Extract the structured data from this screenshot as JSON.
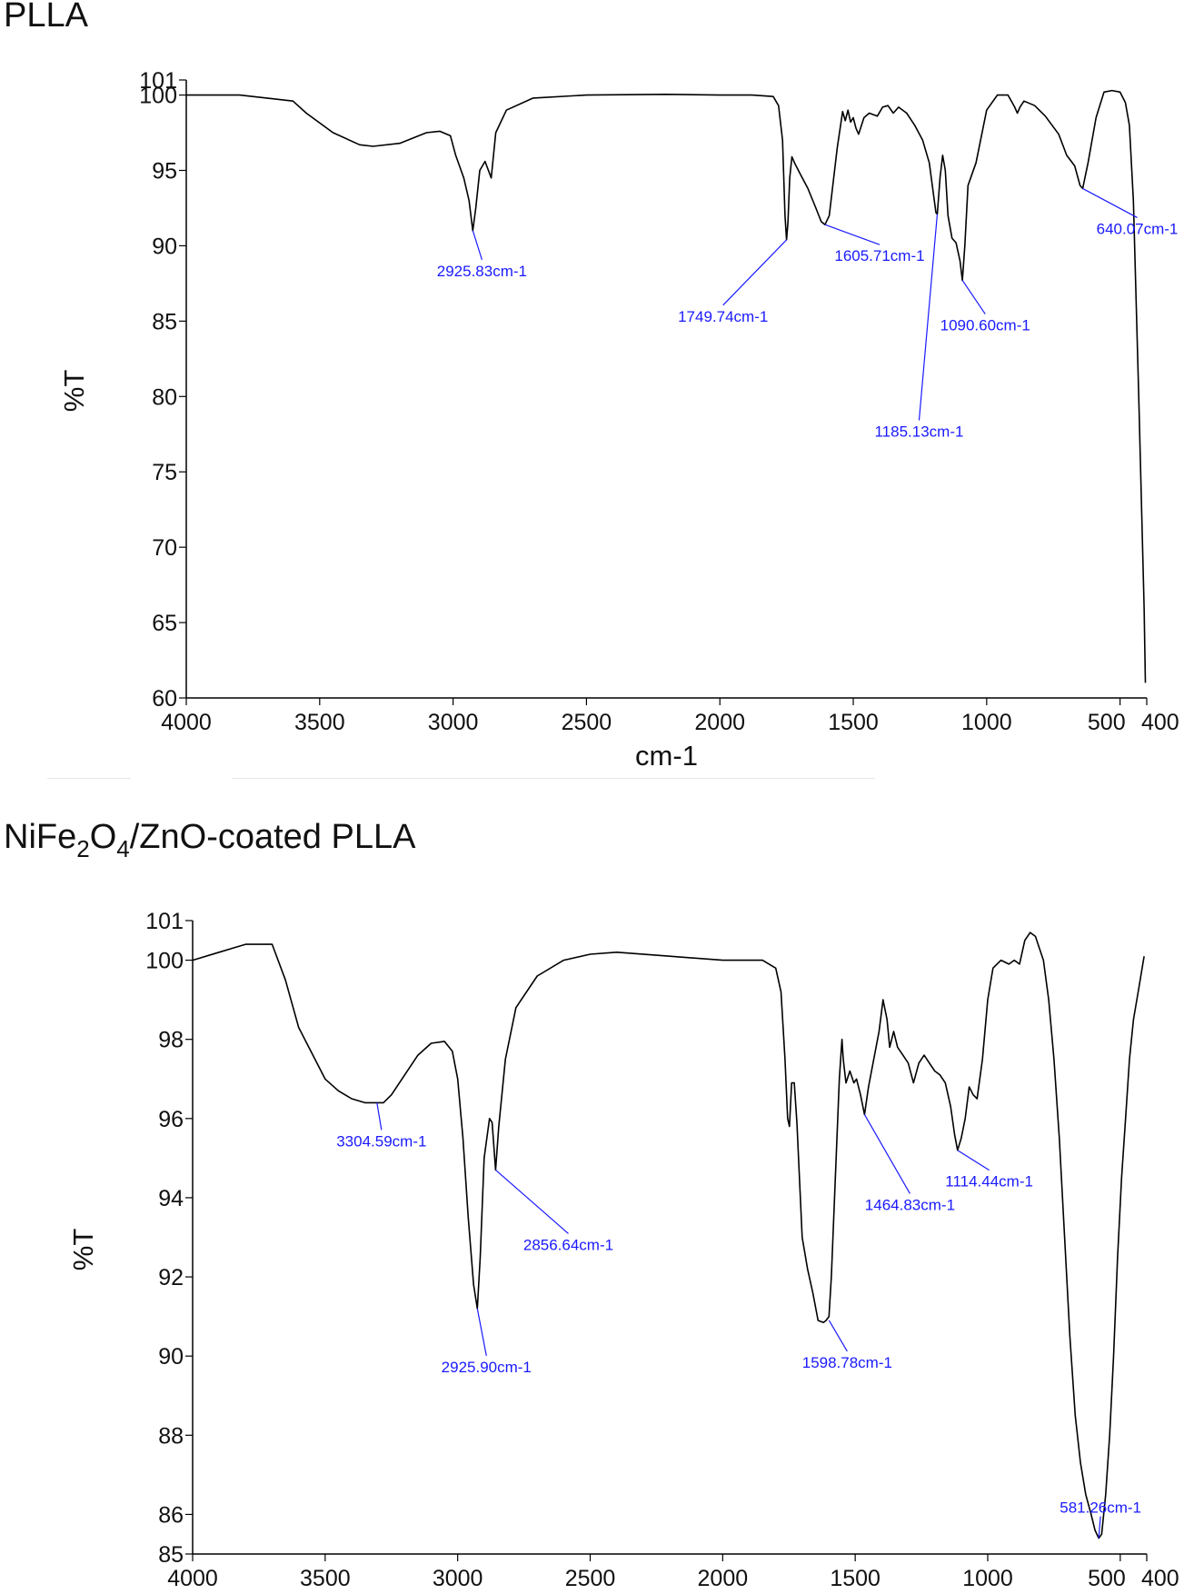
{
  "chart_data": [
    {
      "type": "line",
      "title": "PLLA",
      "xlabel": "cm-1",
      "ylabel": "%T",
      "xlim": [
        4000,
        400
      ],
      "ylim": [
        60,
        101
      ],
      "x_ticks": [
        4000,
        3500,
        3000,
        2500,
        2000,
        1500,
        1000,
        500,
        400
      ],
      "x_tick_labels": [
        "4000",
        "3500",
        "3000",
        "2500",
        "2000",
        "1500",
        "1000",
        "500",
        "400"
      ],
      "y_ticks": [
        60,
        65,
        70,
        75,
        80,
        85,
        90,
        95,
        100,
        101
      ],
      "y_tick_labels": [
        "60",
        "65",
        "70",
        "75",
        "80",
        "85",
        "90",
        "95",
        "100",
        "101"
      ],
      "grid": false,
      "line_color": "#000000",
      "annotation_color": "#1a1aff",
      "series": [
        {
          "x": [
            4000,
            3800,
            3600,
            3550,
            3450,
            3350,
            3300,
            3200,
            3100,
            3050,
            3010,
            2990,
            2960,
            2940,
            2926,
            2915,
            2900,
            2880,
            2857,
            2840,
            2800,
            2700,
            2500,
            2200,
            2000,
            1880,
            1800,
            1780,
            1765,
            1756,
            1750,
            1745,
            1738,
            1730,
            1720,
            1700,
            1670,
            1640,
            1620,
            1606,
            1590,
            1560,
            1540,
            1530,
            1520,
            1510,
            1500,
            1490,
            1480,
            1460,
            1440,
            1410,
            1390,
            1370,
            1350,
            1330,
            1300,
            1270,
            1240,
            1215,
            1200,
            1190,
            1185,
            1175,
            1165,
            1155,
            1145,
            1130,
            1115,
            1100,
            1091,
            1082,
            1070,
            1060,
            1040,
            1000,
            960,
            920,
            895,
            885,
            875,
            860,
            820,
            780,
            730,
            700,
            670,
            650,
            640,
            620,
            590,
            560,
            530,
            500,
            480,
            465,
            450,
            430,
            410,
            405
          ],
          "y": [
            100.0,
            100.0,
            99.6,
            98.8,
            97.5,
            96.7,
            96.6,
            96.8,
            97.5,
            97.6,
            97.3,
            96.0,
            94.5,
            93.0,
            91.0,
            92.5,
            95.0,
            95.6,
            94.5,
            97.5,
            99.0,
            99.8,
            100.0,
            100.05,
            100.0,
            100.0,
            99.9,
            99.3,
            97.0,
            92.0,
            90.4,
            91.5,
            94.5,
            95.9,
            95.5,
            94.8,
            93.8,
            92.5,
            91.6,
            91.4,
            92.0,
            96.5,
            98.9,
            98.3,
            99.0,
            98.2,
            98.5,
            97.8,
            97.4,
            98.5,
            98.8,
            98.6,
            99.2,
            99.3,
            98.8,
            99.2,
            98.8,
            98.0,
            97.0,
            95.5,
            93.5,
            92.2,
            92.1,
            94.5,
            96.0,
            95.0,
            92.0,
            90.5,
            90.2,
            89.0,
            87.7,
            90.0,
            94.0,
            94.5,
            95.5,
            99.0,
            100.0,
            100.0,
            99.2,
            98.8,
            99.2,
            99.6,
            99.3,
            98.6,
            97.4,
            96.0,
            95.3,
            94.0,
            93.8,
            95.5,
            98.5,
            100.2,
            100.3,
            100.2,
            99.5,
            98.0,
            93.0,
            80.0,
            66.0,
            61.0
          ]
        }
      ],
      "annotations": [
        {
          "label": "2925.83cm-1",
          "x": 2925.83,
          "y": 91.0
        },
        {
          "label": "1749.74cm-1",
          "x": 1749.74,
          "y": 90.4
        },
        {
          "label": "1605.71cm-1",
          "x": 1605.71,
          "y": 91.4
        },
        {
          "label": "1185.13cm-1",
          "x": 1185.13,
          "y": 92.1
        },
        {
          "label": "1090.60cm-1",
          "x": 1090.6,
          "y": 87.7
        },
        {
          "label": "640.07cm-1",
          "x": 640.07,
          "y": 93.8
        }
      ]
    },
    {
      "type": "line",
      "title": "NiFe2O4/ZnO-coated PLLA",
      "xlabel": "",
      "ylabel": "%T",
      "xlim": [
        4000,
        400
      ],
      "ylim": [
        85,
        101
      ],
      "x_ticks": [
        4000,
        3500,
        3000,
        2500,
        2000,
        1500,
        1000,
        500,
        400
      ],
      "x_tick_labels": [
        "4000",
        "3500",
        "3000",
        "2500",
        "2000",
        "1500",
        "1000",
        "500",
        "400"
      ],
      "y_ticks": [
        85,
        86,
        88,
        90,
        92,
        94,
        96,
        98,
        100,
        101
      ],
      "y_tick_labels": [
        "85",
        "86",
        "88",
        "90",
        "92",
        "94",
        "96",
        "98",
        "100",
        "101"
      ],
      "grid": false,
      "line_color": "#000000",
      "annotation_color": "#1a1aff",
      "series": [
        {
          "x": [
            4000,
            3900,
            3800,
            3700,
            3650,
            3600,
            3500,
            3450,
            3400,
            3350,
            3320,
            3305,
            3280,
            3250,
            3200,
            3150,
            3100,
            3050,
            3020,
            3000,
            2980,
            2960,
            2940,
            2926,
            2915,
            2900,
            2880,
            2870,
            2857,
            2845,
            2820,
            2780,
            2700,
            2600,
            2500,
            2400,
            2200,
            2000,
            1900,
            1850,
            1800,
            1780,
            1765,
            1755,
            1748,
            1740,
            1730,
            1720,
            1700,
            1680,
            1660,
            1640,
            1620,
            1610,
            1599,
            1590,
            1575,
            1560,
            1550,
            1545,
            1535,
            1520,
            1505,
            1495,
            1480,
            1465,
            1450,
            1430,
            1410,
            1395,
            1380,
            1370,
            1355,
            1340,
            1320,
            1300,
            1280,
            1260,
            1240,
            1220,
            1200,
            1180,
            1160,
            1140,
            1125,
            1114,
            1100,
            1085,
            1070,
            1055,
            1040,
            1020,
            1000,
            980,
            950,
            920,
            900,
            880,
            860,
            840,
            820,
            810,
            790,
            770,
            750,
            730,
            710,
            690,
            670,
            650,
            630,
            610,
            595,
            581,
            570,
            555,
            540,
            525,
            510,
            495,
            480,
            465,
            450,
            430,
            410
          ],
          "y": [
            100.0,
            100.2,
            100.4,
            100.4,
            99.5,
            98.3,
            97.0,
            96.7,
            96.5,
            96.4,
            96.4,
            96.4,
            96.4,
            96.6,
            97.1,
            97.6,
            97.9,
            97.95,
            97.7,
            97.0,
            95.5,
            93.5,
            91.8,
            91.2,
            92.5,
            95.0,
            96.0,
            95.9,
            94.7,
            95.8,
            97.5,
            98.8,
            99.6,
            100.0,
            100.15,
            100.2,
            100.1,
            100.0,
            100.0,
            100.0,
            99.8,
            99.2,
            97.5,
            96.0,
            95.8,
            96.9,
            96.9,
            95.9,
            93.0,
            92.2,
            91.6,
            90.9,
            90.85,
            90.9,
            91.0,
            92.0,
            94.5,
            97.0,
            98.0,
            97.5,
            96.9,
            97.2,
            96.9,
            97.0,
            96.6,
            96.1,
            96.8,
            97.5,
            98.2,
            99.0,
            98.5,
            97.8,
            98.2,
            97.8,
            97.6,
            97.4,
            96.9,
            97.4,
            97.6,
            97.4,
            97.2,
            97.1,
            96.9,
            96.3,
            95.6,
            95.2,
            95.5,
            96.0,
            96.8,
            96.6,
            96.5,
            97.5,
            99.0,
            99.8,
            100.0,
            99.9,
            100.0,
            99.9,
            100.5,
            100.7,
            100.6,
            100.4,
            100.0,
            99.0,
            97.5,
            95.5,
            93.0,
            90.5,
            88.5,
            87.3,
            86.5,
            86.0,
            85.6,
            85.4,
            85.5,
            86.5,
            88.0,
            90.0,
            92.5,
            94.5,
            96.0,
            97.5,
            98.5,
            99.3,
            100.1
          ]
        }
      ],
      "annotations": [
        {
          "label": "3304.59cm-1",
          "x": 3304.59,
          "y": 96.4
        },
        {
          "label": "2925.90cm-1",
          "x": 2925.9,
          "y": 91.2
        },
        {
          "label": "2856.64cm-1",
          "x": 2856.64,
          "y": 94.7
        },
        {
          "label": "1598.78cm-1",
          "x": 1598.78,
          "y": 90.9
        },
        {
          "label": "1464.83cm-1",
          "x": 1464.83,
          "y": 96.1
        },
        {
          "label": "1114.44cm-1",
          "x": 1114.44,
          "y": 95.2
        },
        {
          "label": "581.26cm-1",
          "x": 581.26,
          "y": 85.4
        }
      ]
    }
  ],
  "titles": {
    "top_panel": "PLLA",
    "bottom_panel_parts": [
      "NiFe",
      "2",
      "O",
      "4",
      "/ZnO-coated PLLA"
    ]
  }
}
